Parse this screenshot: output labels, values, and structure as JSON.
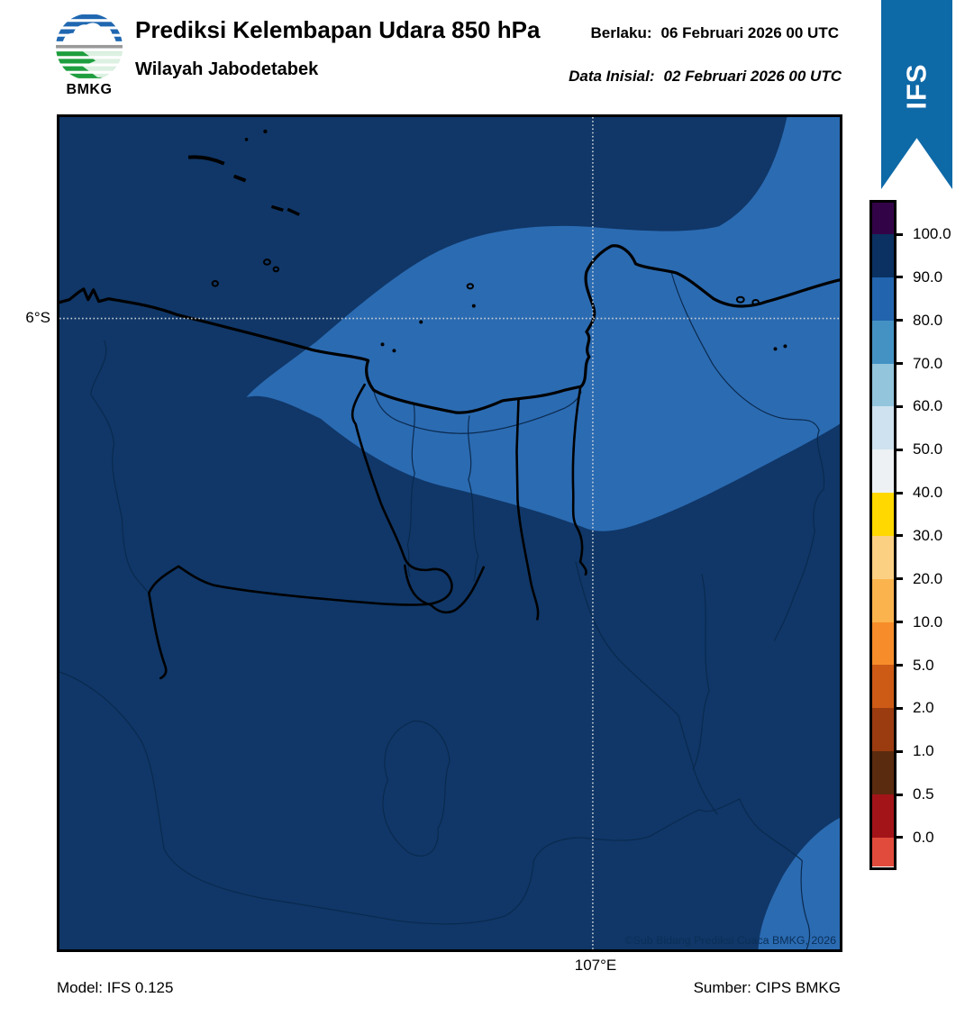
{
  "header": {
    "logo_label": "BMKG",
    "title": "Prediksi Kelembapan Udara 850 hPa",
    "subtitle": "Wilayah Jabodetabek",
    "valid_label": "Berlaku:",
    "valid_value": "06 Februari 2026 00 UTC",
    "initial_label": "Data Inisial:",
    "initial_value": "02 Februari 2026 00 UTC",
    "model_badge": "IFS"
  },
  "map": {
    "lat_tick": "6°S",
    "lon_tick": "107°E",
    "copyright": "©Sub Bidang Prediksi Cuaca BMKG, 2026"
  },
  "footer": {
    "model": "Model: IFS 0.125",
    "source": "Sumber: CIPS BMKG"
  },
  "colorbar": {
    "unit": "%",
    "ticks": [
      "100.0",
      "90.0",
      "80.0",
      "70.0",
      "60.0",
      "50.0",
      "40.0",
      "30.0",
      "20.0",
      "10.0",
      "5.0",
      "2.0",
      "1.0",
      "0.5",
      "0.0"
    ],
    "segment_colors": [
      "#330347",
      "#0a3161",
      "#2264ae",
      "#4492c4",
      "#93c5dd",
      "#cfe2ef",
      "#edf1f3",
      "#ffd800",
      "#fbd083",
      "#fbb34d",
      "#f68d2a",
      "#cd5a15",
      "#9a3b10",
      "#5a2b0f",
      "#a31419",
      "#e14b3b"
    ]
  },
  "colors": {
    "map_rh_90_100": "#103768",
    "map_rh_80_90": "#2b6bb2",
    "ribbon_blue": "#0e69a7",
    "gridline": "#ccd3d9",
    "copyright_text": "#0a2f58"
  }
}
